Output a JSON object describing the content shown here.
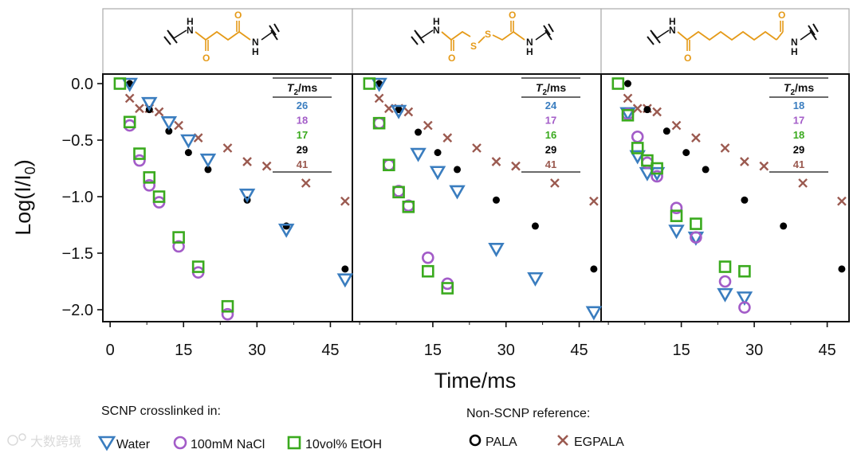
{
  "colors": {
    "water": "#3a7dbf",
    "nacl": "#a35cc8",
    "etoh": "#3aaa1e",
    "pala": "#000000",
    "egpala": "#9b5a50",
    "structure": "#e59a18"
  },
  "chart_data": {
    "type": "scatter",
    "xlabel": "Time/ms",
    "ylabel": "Log(I/I0)",
    "ylim": [
      -2.1,
      0.1
    ],
    "yticks": [
      "0.0",
      "−0.5",
      "−1.0",
      "−1.5",
      "−2.0"
    ],
    "yticks_values": [
      0.0,
      -0.5,
      -1.0,
      -1.5,
      -2.0
    ],
    "table_header": "T2/ms",
    "legend": {
      "scnp_title": "SCNP crosslinked in:",
      "ref_title": "Non-SCNP reference:",
      "water": "Water",
      "nacl": "100mM NaCl",
      "etoh": "10vol% EtOH",
      "pala": "PALA",
      "egpala": "EGPALA"
    },
    "panels": [
      {
        "structure_linker": "succinyl (C2 diamide)",
        "xlim": [
          -1,
          49
        ],
        "xticks": [
          0,
          15,
          30,
          45
        ],
        "t2": {
          "Water": "26",
          "NaCl": "18",
          "EtOH": "17",
          "PALA": "29",
          "EGPALA": "41"
        },
        "series": [
          {
            "name": "Water",
            "x": [
              4,
              8,
              12,
              16,
              20,
              28,
              36,
              48
            ],
            "y": [
              0.0,
              -0.17,
              -0.34,
              -0.5,
              -0.67,
              -0.98,
              -1.29,
              -1.73
            ]
          },
          {
            "name": "100mM NaCl",
            "x": [
              4,
              6,
              8,
              10,
              14,
              18,
              24
            ],
            "y": [
              -0.37,
              -0.68,
              -0.9,
              -1.05,
              -1.44,
              -1.67,
              -2.04
            ]
          },
          {
            "name": "10vol% EtOH",
            "x": [
              2,
              4,
              6,
              8,
              10,
              14,
              18,
              24
            ],
            "y": [
              0.0,
              -0.34,
              -0.62,
              -0.83,
              -1.0,
              -1.36,
              -1.62,
              -1.97
            ]
          },
          {
            "name": "PALA",
            "x": [
              4,
              8,
              12,
              16,
              20,
              28,
              36,
              48
            ],
            "y": [
              0.0,
              -0.23,
              -0.42,
              -0.61,
              -0.76,
              -1.03,
              -1.26,
              -1.64
            ]
          },
          {
            "name": "EGPALA",
            "x": [
              4,
              6,
              8,
              10,
              14,
              18,
              24,
              28,
              32,
              40,
              48
            ],
            "y": [
              -0.13,
              -0.22,
              -0.22,
              -0.25,
              -0.37,
              -0.48,
              -0.57,
              -0.69,
              -0.73,
              -0.88,
              -1.04
            ]
          }
        ]
      },
      {
        "structure_linker": "disulfide diacetyl diamide",
        "xlim": [
          -1,
          49
        ],
        "xticks": [
          15,
          30,
          45
        ],
        "t2": {
          "Water": "24",
          "NaCl": "17",
          "EtOH": "16",
          "PALA": "29",
          "EGPALA": "41"
        },
        "series": [
          {
            "name": "Water",
            "x": [
              4,
              8,
              12,
              16,
              20,
              28,
              36,
              48
            ],
            "y": [
              0.0,
              -0.24,
              -0.62,
              -0.78,
              -0.95,
              -1.46,
              -1.72,
              -2.02
            ]
          },
          {
            "name": "100mM NaCl",
            "x": [
              4,
              6,
              8,
              10,
              14,
              18
            ],
            "y": [
              -0.35,
              -0.72,
              -0.95,
              -1.08,
              -1.54,
              -1.77
            ]
          },
          {
            "name": "10vol% EtOH",
            "x": [
              2,
              4,
              6,
              8,
              10,
              14,
              18
            ],
            "y": [
              0.0,
              -0.35,
              -0.72,
              -0.96,
              -1.09,
              -1.66,
              -1.81
            ]
          },
          {
            "name": "PALA",
            "x": [
              4,
              8,
              12,
              16,
              20,
              28,
              36,
              48
            ],
            "y": [
              0.0,
              -0.23,
              -0.43,
              -0.61,
              -0.76,
              -1.03,
              -1.26,
              -1.64
            ]
          },
          {
            "name": "EGPALA",
            "x": [
              4,
              6,
              8,
              10,
              14,
              18,
              24,
              28,
              32,
              40,
              48
            ],
            "y": [
              -0.13,
              -0.22,
              -0.22,
              -0.25,
              -0.37,
              -0.48,
              -0.57,
              -0.69,
              -0.73,
              -0.88,
              -1.04
            ]
          }
        ]
      },
      {
        "structure_linker": "suberoyl (C6 diamide)",
        "xlim": [
          -1,
          49
        ],
        "xticks": [
          15,
          30,
          45
        ],
        "t2": {
          "Water": "18",
          "NaCl": "17",
          "EtOH": "18",
          "PALA": "29",
          "EGPALA": "41"
        },
        "series": [
          {
            "name": "Water",
            "x": [
              4,
              6,
              8,
              10,
              14,
              18,
              24,
              28
            ],
            "y": [
              -0.26,
              -0.64,
              -0.79,
              -0.79,
              -1.3,
              -1.36,
              -1.86,
              -1.89
            ]
          },
          {
            "name": "100mM NaCl",
            "x": [
              4,
              6,
              8,
              10,
              14,
              18,
              24,
              28
            ],
            "y": [
              -0.27,
              -0.47,
              -0.7,
              -0.82,
              -1.1,
              -1.36,
              -1.75,
              -1.98
            ]
          },
          {
            "name": "10vol% EtOH",
            "x": [
              2,
              4,
              6,
              8,
              10,
              14,
              18,
              24,
              28
            ],
            "y": [
              0.0,
              -0.28,
              -0.57,
              -0.68,
              -0.75,
              -1.17,
              -1.24,
              -1.62,
              -1.66
            ]
          },
          {
            "name": "PALA",
            "x": [
              4,
              8,
              12,
              16,
              20,
              28,
              36,
              48
            ],
            "y": [
              0.0,
              -0.23,
              -0.42,
              -0.61,
              -0.76,
              -1.03,
              -1.26,
              -1.64
            ]
          },
          {
            "name": "EGPALA",
            "x": [
              4,
              6,
              8,
              10,
              14,
              18,
              24,
              28,
              32,
              40,
              48
            ],
            "y": [
              -0.13,
              -0.22,
              -0.22,
              -0.25,
              -0.37,
              -0.48,
              -0.57,
              -0.69,
              -0.73,
              -0.88,
              -1.04
            ]
          }
        ]
      }
    ]
  },
  "watermark": "大数跨境"
}
